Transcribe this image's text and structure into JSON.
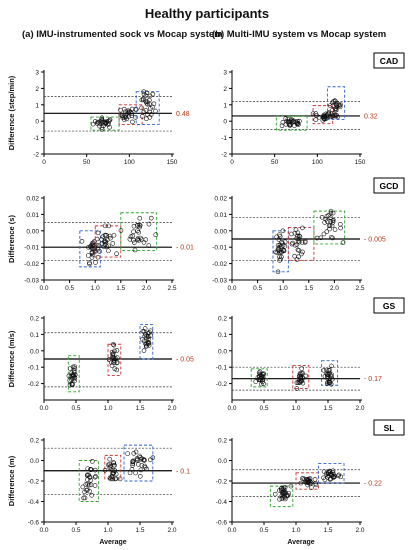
{
  "figure": {
    "title": "Healthy participants",
    "col_a": "(a) IMU-instrumented sock vs Mocap system",
    "col_b": "(b) Multi-IMU system vs Mocap system"
  },
  "colors": {
    "green": "#2fa52f",
    "red": "#c83232",
    "blue": "#2f62d0",
    "mean_label": "#b33a1a"
  },
  "chart_data": [
    {
      "type": "scatter",
      "id": "cad-a",
      "panel_label": "",
      "ylabel": "Difference (step/min)",
      "xlabel": "",
      "xlim": [
        0,
        150
      ],
      "ylim": [
        -2,
        3
      ],
      "xticks": [
        "0",
        "50",
        "100",
        "150"
      ],
      "yticks": [
        "-2",
        "-1",
        "0",
        "1",
        "2",
        "3"
      ],
      "mean": 0.48,
      "mean_label": "0.48",
      "loa": [
        1.5,
        -0.6
      ],
      "clusters": [
        {
          "color": "green",
          "x": [
            55,
            88
          ],
          "y": [
            -0.55,
            0.25
          ],
          "cx": 70,
          "cy": -0.1,
          "sx": 6,
          "sy": 0.15,
          "n": 28
        },
        {
          "color": "red",
          "x": [
            88,
            115
          ],
          "y": [
            -0.2,
            1.0
          ],
          "cx": 100,
          "cy": 0.4,
          "sx": 5,
          "sy": 0.22,
          "n": 26
        },
        {
          "color": "blue",
          "x": [
            108,
            135
          ],
          "y": [
            -0.2,
            1.8
          ],
          "cx": 120,
          "cy": 0.9,
          "sx": 5,
          "sy": 0.5,
          "n": 28
        }
      ]
    },
    {
      "type": "scatter",
      "id": "cad-b",
      "panel_label": "CAD",
      "ylabel": "",
      "xlabel": "",
      "xlim": [
        0,
        150
      ],
      "ylim": [
        -2,
        3
      ],
      "xticks": [
        "0",
        "50",
        "100",
        "150"
      ],
      "yticks": [
        "-2",
        "-1",
        "0",
        "1",
        "2",
        "3"
      ],
      "mean": 0.32,
      "mean_label": "0.32",
      "loa": [
        1.2,
        -0.5
      ],
      "clusters": [
        {
          "color": "green",
          "x": [
            52,
            88
          ],
          "y": [
            -0.55,
            0.3
          ],
          "cx": 70,
          "cy": -0.1,
          "sx": 6,
          "sy": 0.12,
          "n": 28
        },
        {
          "color": "red",
          "x": [
            95,
            118
          ],
          "y": [
            -0.15,
            0.95
          ],
          "cx": 106,
          "cy": 0.3,
          "sx": 5,
          "sy": 0.15,
          "n": 26
        },
        {
          "color": "blue",
          "x": [
            112,
            132
          ],
          "y": [
            0.1,
            2.1
          ],
          "cx": 122,
          "cy": 0.8,
          "sx": 4,
          "sy": 0.4,
          "n": 28
        }
      ]
    },
    {
      "type": "scatter",
      "id": "gcd-a",
      "panel_label": "",
      "ylabel": "Difference (s)",
      "xlabel": "",
      "xlim": [
        0,
        2.5
      ],
      "ylim": [
        -0.03,
        0.02
      ],
      "xticks": [
        "0.0",
        "0.5",
        "1.0",
        "1.5",
        "2.0",
        "2.5"
      ],
      "yticks": [
        "-0.03",
        "-0.02",
        "-0.01",
        "0.00",
        "0.01",
        "0.02"
      ],
      "mean": -0.01,
      "mean_label": "- 0.01",
      "loa": [
        0.005,
        -0.018
      ],
      "clusters": [
        {
          "color": "blue",
          "x": [
            0.7,
            1.1
          ],
          "y": [
            -0.022,
            0.0
          ],
          "cx": 0.95,
          "cy": -0.011,
          "sx": 0.06,
          "sy": 0.004,
          "n": 30
        },
        {
          "color": "red",
          "x": [
            1.0,
            1.5
          ],
          "y": [
            -0.016,
            0.003
          ],
          "cx": 1.2,
          "cy": -0.006,
          "sx": 0.08,
          "sy": 0.004,
          "n": 26
        },
        {
          "color": "green",
          "x": [
            1.5,
            2.2
          ],
          "y": [
            -0.012,
            0.011
          ],
          "cx": 1.85,
          "cy": -0.001,
          "sx": 0.12,
          "sy": 0.005,
          "n": 28
        }
      ]
    },
    {
      "type": "scatter",
      "id": "gcd-b",
      "panel_label": "GCD",
      "ylabel": "",
      "xlabel": "",
      "xlim": [
        0,
        2.5
      ],
      "ylim": [
        -0.03,
        0.02
      ],
      "xticks": [
        "0.0",
        "0.5",
        "1.0",
        "1.5",
        "2.0",
        "2.5"
      ],
      "yticks": [
        "-0.03",
        "-0.02",
        "-0.01",
        "0.00",
        "0.01",
        "0.02"
      ],
      "mean": -0.005,
      "mean_label": "- 0.005",
      "loa": [
        0.008,
        -0.018
      ],
      "clusters": [
        {
          "color": "blue",
          "x": [
            0.8,
            1.1
          ],
          "y": [
            -0.025,
            0.0
          ],
          "cx": 0.95,
          "cy": -0.011,
          "sx": 0.05,
          "sy": 0.005,
          "n": 30
        },
        {
          "color": "red",
          "x": [
            1.1,
            1.6
          ],
          "y": [
            -0.018,
            0.002
          ],
          "cx": 1.3,
          "cy": -0.007,
          "sx": 0.08,
          "sy": 0.004,
          "n": 26
        },
        {
          "color": "green",
          "x": [
            1.6,
            2.2
          ],
          "y": [
            -0.008,
            0.012
          ],
          "cx": 1.9,
          "cy": 0.003,
          "sx": 0.12,
          "sy": 0.004,
          "n": 28
        }
      ]
    },
    {
      "type": "scatter",
      "id": "gs-a",
      "panel_label": "",
      "ylabel": "Difference (m/s)",
      "xlabel": "",
      "xlim": [
        0,
        2.0
      ],
      "ylim": [
        -0.3,
        0.2
      ],
      "xticks": [
        "0.0",
        "0.5",
        "1.0",
        "1.5",
        "2.0"
      ],
      "yticks": [
        "-0.2",
        "-0.1",
        "0.0",
        "0.1",
        "0.2"
      ],
      "mean": -0.05,
      "mean_label": "- 0.05",
      "loa": [
        0.11,
        -0.22
      ],
      "clusters": [
        {
          "color": "green",
          "x": [
            0.38,
            0.55
          ],
          "y": [
            -0.25,
            -0.03
          ],
          "cx": 0.45,
          "cy": -0.15,
          "sx": 0.03,
          "sy": 0.05,
          "n": 26
        },
        {
          "color": "red",
          "x": [
            1.0,
            1.2
          ],
          "y": [
            -0.15,
            0.04
          ],
          "cx": 1.1,
          "cy": -0.05,
          "sx": 0.04,
          "sy": 0.04,
          "n": 24
        },
        {
          "color": "blue",
          "x": [
            1.5,
            1.7
          ],
          "y": [
            -0.05,
            0.16
          ],
          "cx": 1.6,
          "cy": 0.06,
          "sx": 0.04,
          "sy": 0.04,
          "n": 26
        }
      ]
    },
    {
      "type": "scatter",
      "id": "gs-b",
      "panel_label": "GS",
      "ylabel": "",
      "xlabel": "",
      "xlim": [
        0,
        2.0
      ],
      "ylim": [
        -0.3,
        0.2
      ],
      "xticks": [
        "0.0",
        "0.5",
        "1.0",
        "1.5",
        "2.0"
      ],
      "yticks": [
        "-0.2",
        "-0.1",
        "0.0",
        "0.1",
        "0.2"
      ],
      "mean": -0.17,
      "mean_label": "- 0.17",
      "loa": [
        -0.1,
        -0.24
      ],
      "clusters": [
        {
          "color": "green",
          "x": [
            0.3,
            0.55
          ],
          "y": [
            -0.22,
            -0.11
          ],
          "cx": 0.45,
          "cy": -0.17,
          "sx": 0.03,
          "sy": 0.02,
          "n": 26
        },
        {
          "color": "red",
          "x": [
            0.95,
            1.2
          ],
          "y": [
            -0.23,
            -0.09
          ],
          "cx": 1.08,
          "cy": -0.17,
          "sx": 0.03,
          "sy": 0.025,
          "n": 24
        },
        {
          "color": "blue",
          "x": [
            1.4,
            1.65
          ],
          "y": [
            -0.21,
            -0.06
          ],
          "cx": 1.52,
          "cy": -0.15,
          "sx": 0.03,
          "sy": 0.03,
          "n": 26
        }
      ]
    },
    {
      "type": "scatter",
      "id": "sl-a",
      "panel_label": "",
      "ylabel": "Difference (m)",
      "xlabel": "Average",
      "xlim": [
        0,
        2.0
      ],
      "ylim": [
        -0.6,
        0.2
      ],
      "xticks": [
        "0.0",
        "0.5",
        "1.0",
        "1.5",
        "2.0"
      ],
      "yticks": [
        "-0.6",
        "-0.4",
        "-0.2",
        "0.0",
        "0.2"
      ],
      "mean": -0.1,
      "mean_label": "- 0.1",
      "loa": [
        0.12,
        -0.33
      ],
      "clusters": [
        {
          "color": "green",
          "x": [
            0.55,
            0.85
          ],
          "y": [
            -0.4,
            0.0
          ],
          "cx": 0.72,
          "cy": -0.2,
          "sx": 0.06,
          "sy": 0.08,
          "n": 28
        },
        {
          "color": "red",
          "x": [
            0.95,
            1.2
          ],
          "y": [
            -0.18,
            0.05
          ],
          "cx": 1.07,
          "cy": -0.1,
          "sx": 0.05,
          "sy": 0.05,
          "n": 26
        },
        {
          "color": "blue",
          "x": [
            1.25,
            1.7
          ],
          "y": [
            -0.2,
            0.15
          ],
          "cx": 1.45,
          "cy": -0.02,
          "sx": 0.09,
          "sy": 0.06,
          "n": 30
        }
      ]
    },
    {
      "type": "scatter",
      "id": "sl-b",
      "panel_label": "SL",
      "ylabel": "",
      "xlabel": "Average",
      "xlim": [
        0,
        2.0
      ],
      "ylim": [
        -0.6,
        0.2
      ],
      "xticks": [
        "0.0",
        "0.5",
        "1.0",
        "1.5",
        "2.0"
      ],
      "yticks": [
        "-0.6",
        "-0.4",
        "-0.2",
        "0.0",
        "0.2"
      ],
      "mean": -0.22,
      "mean_label": "- 0.22",
      "loa": [
        -0.09,
        -0.35
      ],
      "clusters": [
        {
          "color": "green",
          "x": [
            0.6,
            0.95
          ],
          "y": [
            -0.45,
            -0.25
          ],
          "cx": 0.8,
          "cy": -0.33,
          "sx": 0.06,
          "sy": 0.04,
          "n": 28
        },
        {
          "color": "red",
          "x": [
            1.0,
            1.35
          ],
          "y": [
            -0.28,
            -0.12
          ],
          "cx": 1.2,
          "cy": -0.21,
          "sx": 0.06,
          "sy": 0.03,
          "n": 26
        },
        {
          "color": "blue",
          "x": [
            1.35,
            1.75
          ],
          "y": [
            -0.22,
            -0.03
          ],
          "cx": 1.55,
          "cy": -0.14,
          "sx": 0.07,
          "sy": 0.03,
          "n": 30
        }
      ]
    }
  ]
}
